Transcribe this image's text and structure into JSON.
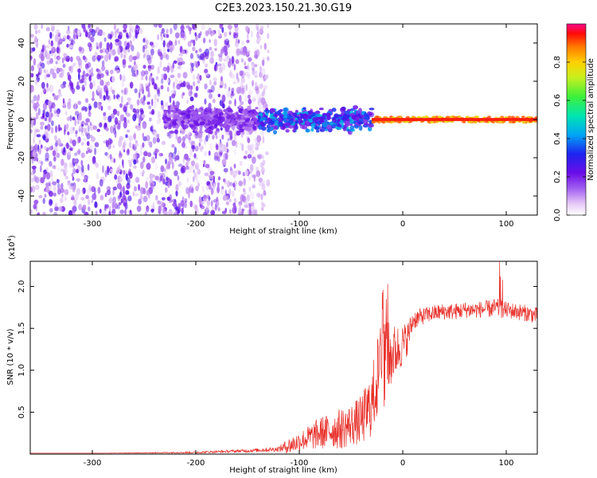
{
  "title": "C2E3.2023.150.21.30.G19",
  "colors": {
    "snr_line": "#e8302a",
    "spectrum_low": "#e9d6f5",
    "spectrum_mid": "#8a2be2",
    "axis": "#000000"
  },
  "chart_data": [
    {
      "type": "heatmap",
      "title": "C2E3.2023.150.21.30.G19",
      "xlabel": "Height of straight line (km)",
      "ylabel": "Frequency (Hz)",
      "xlim": [
        -360,
        130
      ],
      "ylim": [
        -50,
        50
      ],
      "x_ticks": [
        -300,
        -200,
        -100,
        0,
        100
      ],
      "y_ticks": [
        -40,
        -20,
        0,
        20,
        40
      ],
      "colorbar": {
        "label": "Normalized spectral amplitude",
        "range": [
          0.0,
          1.0
        ],
        "ticks": [
          "0.0",
          "0.2",
          "0.4",
          "0.6",
          "0.8"
        ],
        "colormap": "rainbow (white/violet at 0 to red/magenta at 1)"
      },
      "features": {
        "noise_region_x": [
          -360,
          -130
        ],
        "signal_center_freq": 0,
        "band_segments": [
          {
            "x": [
              -230,
              -140
            ],
            "freq_halfwidth": 8,
            "amplitude": 0.25
          },
          {
            "x": [
              -140,
              -30
            ],
            "freq_halfwidth": 7,
            "amplitude": 0.45
          },
          {
            "x": [
              -30,
              130
            ],
            "freq_halfwidth": 1.5,
            "amplitude": 0.95
          }
        ]
      }
    },
    {
      "type": "line",
      "title": "",
      "xlabel": "Height of straight line (km)",
      "ylabel": "SNR (10 * v/v)",
      "y_scale_note": "(x10",
      "y_scale_exp": "4",
      "y_scale_close": ")",
      "xlim": [
        -360,
        130
      ],
      "ylim": [
        0,
        2.3
      ],
      "x_ticks": [
        -300,
        -200,
        -100,
        0,
        100
      ],
      "y_ticks": [
        "0.5",
        "1.0",
        "1.5",
        "2.0"
      ],
      "series": [
        {
          "x": [
            -360,
            -300,
            -250,
            -200,
            -150,
            -120,
            -110,
            -100,
            -90,
            -80,
            -70,
            -60,
            -50,
            -40,
            -30,
            -25,
            -20,
            -15,
            -10,
            -5,
            0,
            5,
            10,
            20,
            30,
            40,
            50,
            60,
            70,
            80,
            90,
            100,
            110,
            120,
            130
          ],
          "values": [
            0.01,
            0.01,
            0.015,
            0.02,
            0.04,
            0.06,
            0.1,
            0.15,
            0.2,
            0.25,
            0.28,
            0.3,
            0.35,
            0.4,
            0.6,
            0.9,
            1.0,
            1.1,
            1.2,
            1.25,
            1.3,
            1.4,
            1.6,
            1.65,
            1.68,
            1.7,
            1.7,
            1.72,
            1.72,
            1.73,
            1.74,
            1.72,
            1.7,
            1.68,
            1.65
          ],
          "noise": [
            0.0,
            0.0,
            0.005,
            0.01,
            0.02,
            0.03,
            0.1,
            0.12,
            0.15,
            0.2,
            0.2,
            0.25,
            0.25,
            0.3,
            0.4,
            0.5,
            0.5,
            0.5,
            0.35,
            0.3,
            0.25,
            0.2,
            0.12,
            0.1,
            0.1,
            0.1,
            0.1,
            0.1,
            0.1,
            0.1,
            0.12,
            0.1,
            0.1,
            0.1,
            0.1
          ]
        }
      ]
    }
  ]
}
